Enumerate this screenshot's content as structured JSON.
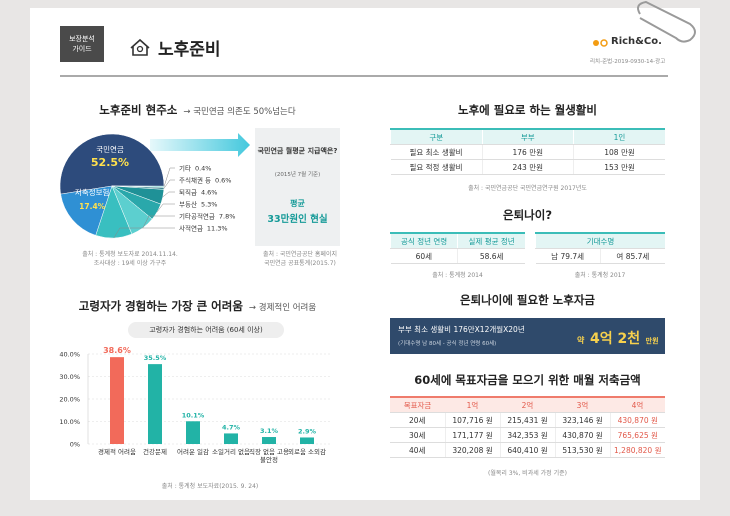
{
  "header": {
    "tag": "보장분석 가이드",
    "title": "노후준비",
    "logo": "Rich&Co.",
    "code": "리치-준법-2019-0930-14-광고"
  },
  "chart_data": [
    {
      "type": "pie",
      "title": "노후준비 현주소",
      "subtitle": "→ 국민연금 의존도 50%넘는다",
      "categories": [
        "국민연금",
        "기타",
        "주식채권 등",
        "퇴직금",
        "부동산",
        "기타공적연금",
        "사적연금",
        "저축성보험"
      ],
      "values": [
        52.5,
        0.4,
        0.6,
        4.6,
        5.3,
        7.8,
        11.3,
        17.4
      ],
      "value_labels": [
        "52.5%",
        "0.4%",
        "0.6%",
        "4.6%",
        "5.3%",
        "7.8%",
        "11.3%",
        "17.4%"
      ],
      "colors": [
        "#2d4b7c",
        "#7fd8d8",
        "#3f8793",
        "#1f9197",
        "#2aa8ab",
        "#5ccfcf",
        "#39bfc0",
        "#2f90d4"
      ],
      "source": "출처 : 통계청 보도자료 2014.11.14.",
      "note": "조사대상 : 19세 이상 가구주"
    },
    {
      "type": "bar",
      "title": "고령자가 경험하는 가장 큰 어려움",
      "subtitle": "→ 경제적인 어려움",
      "chart_title": "고령자가 경험하는 어려움 (60세 이상)",
      "categories": [
        "경제적 어려움",
        "건강문제",
        "어려운 일감",
        "소일거리 없음",
        "직장 없음 고용 불안정",
        "외로움 소외감"
      ],
      "values": [
        38.6,
        35.5,
        10.1,
        4.7,
        3.1,
        2.9
      ],
      "value_labels": [
        "38.6%",
        "35.5%",
        "10.1%",
        "4.7%",
        "3.1%",
        "2.9%"
      ],
      "colors": [
        "#f26a5a",
        "#22b3a6",
        "#22b3a6",
        "#22b3a6",
        "#22b3a6",
        "#22b3a6"
      ],
      "ylim": [
        0,
        40
      ],
      "yticks": [
        {
          "value": 0,
          "label": "0%"
        },
        {
          "value": 10,
          "label": "10.0%"
        },
        {
          "value": 20,
          "label": "20.0%"
        },
        {
          "value": 30,
          "label": "30.0%"
        },
        {
          "value": 40,
          "label": "40.0%"
        }
      ],
      "grid": true,
      "source": "출처 : 통계청 보도자료(2015. 9. 24)"
    }
  ],
  "pension_box": {
    "question": "국민연금 월평균 지급액은?",
    "basis": "(2015년 7월 기준)",
    "label": "평균",
    "amount": "33만원인 현실",
    "source": "출처 : 국민연금공단 홈페이지",
    "source2": "국민연금 공표통계(2015.7)"
  },
  "living_cost": {
    "title": "노후에 필요로 하는 월생활비",
    "columns": [
      "구분",
      "부부",
      "1인"
    ],
    "rows": [
      [
        "필요 최소 생활비",
        "176 만원",
        "108 만원"
      ],
      [
        "필요 적정 생활비",
        "243 만원",
        "153 만원"
      ]
    ],
    "source": "출처 : 국민연금공단 국민연금연구원 2017년도"
  },
  "retire_age": {
    "title": "은퇴나이?",
    "retire": {
      "columns": [
        "공식 정년 연령",
        "실제 평균 정년"
      ],
      "rows": [
        [
          "60세",
          "58.6세"
        ]
      ],
      "source": "출처 : 통계청 2014"
    },
    "life": {
      "columns": [
        "기대수명"
      ],
      "rows": [
        [
          "남 79.7세",
          "여 85.7세"
        ]
      ],
      "source": "출처 : 통계청 2017"
    }
  },
  "fund": {
    "title": "은퇴나이에 필요한 노후자금",
    "formula": "부부 최소 생활비 176만X12개월X20년",
    "basis": "(기대수명 남 80세 - 공식 정년 연령 60세)",
    "prefix": "약",
    "amount": "4억 2천",
    "unit": "만원"
  },
  "saving": {
    "title": "60세에 목표자금을 모으기 위한 매월 저축금액",
    "columns": [
      "목표자금",
      "1억",
      "2억",
      "3억",
      "4억"
    ],
    "rows": [
      [
        "20세",
        "107,716 원",
        "215,431 원",
        "323,146 원",
        "430,870 원"
      ],
      [
        "30세",
        "171,177 원",
        "342,353 원",
        "430,870 원",
        "765,625 원"
      ],
      [
        "40세",
        "320,208 원",
        "640,410 원",
        "513,530 원",
        "1,280,820 원"
      ]
    ],
    "note": "(월복리 3%, 비과세 가정 기준)"
  }
}
